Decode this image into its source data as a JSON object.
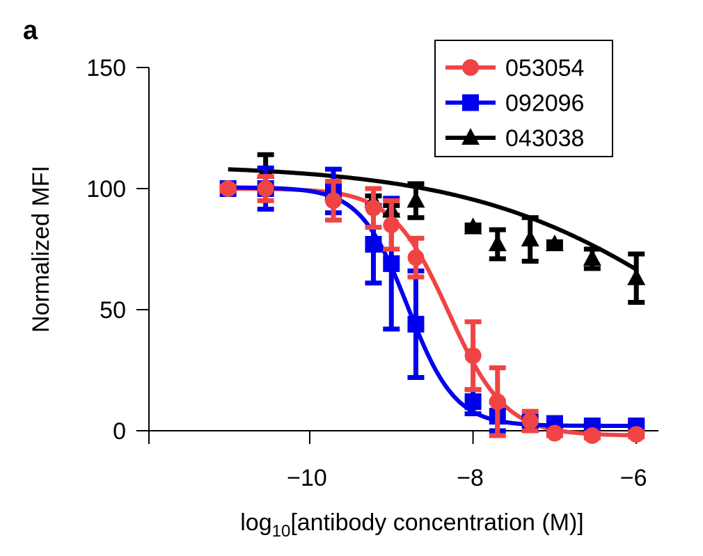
{
  "panel_label": "a",
  "chart_data": {
    "type": "scatter",
    "title": "",
    "xlabel_main": "log",
    "xlabel_sub": "10",
    "xlabel_rest": "[antibody concentration (M)]",
    "ylabel": "Normalized MFI",
    "xlim": [
      -11.98,
      -5.73
    ],
    "ylim": [
      -5.5,
      150
    ],
    "xticks": [
      -10,
      -8,
      -6
    ],
    "xtick_labels": [
      "−10",
      "−8",
      "−6"
    ],
    "yticks": [
      0,
      50,
      100,
      150
    ],
    "ytick_labels": [
      "0",
      "50",
      "100",
      "150"
    ],
    "grid": false,
    "legend_position": "top-right",
    "series": [
      {
        "name": "053054",
        "color": "#f04444",
        "marker": "circle",
        "x": [
          -11.0,
          -10.54,
          -9.71,
          -9.22,
          -9.0,
          -8.7,
          -8.0,
          -7.7,
          -7.3,
          -7.0,
          -6.54,
          -6.0
        ],
        "y": [
          100,
          100,
          95,
          92,
          85,
          71.5,
          31,
          12,
          4,
          -1,
          -2,
          -1.5
        ],
        "err": [
          1,
          5,
          8,
          8,
          10,
          8,
          14,
          14,
          4,
          1,
          1,
          1
        ]
      },
      {
        "name": "092096",
        "color": "#0000ee",
        "marker": "square",
        "x": [
          -11.0,
          -10.54,
          -9.71,
          -9.22,
          -9.0,
          -8.7,
          -8.0,
          -7.7,
          -7.3,
          -7.0,
          -6.54,
          -6.0
        ],
        "y": [
          100,
          100,
          99,
          77,
          69,
          44,
          12,
          6,
          3,
          3,
          2,
          2
        ],
        "err": [
          1,
          8.5,
          9,
          16,
          27,
          22,
          5,
          6,
          3,
          1,
          1,
          1
        ]
      },
      {
        "name": "043038",
        "color": "#000000",
        "marker": "triangle",
        "x": [
          -10.54,
          -9.71,
          -9.22,
          -9.0,
          -8.7,
          -8.0,
          -7.7,
          -7.3,
          -7.0,
          -6.54,
          -6.0
        ],
        "y": [
          107,
          98,
          95,
          91,
          95,
          84,
          77,
          79,
          77,
          71,
          63
        ],
        "err": [
          7,
          2,
          2,
          2,
          7,
          1,
          6,
          9,
          1,
          4,
          10
        ]
      }
    ]
  }
}
